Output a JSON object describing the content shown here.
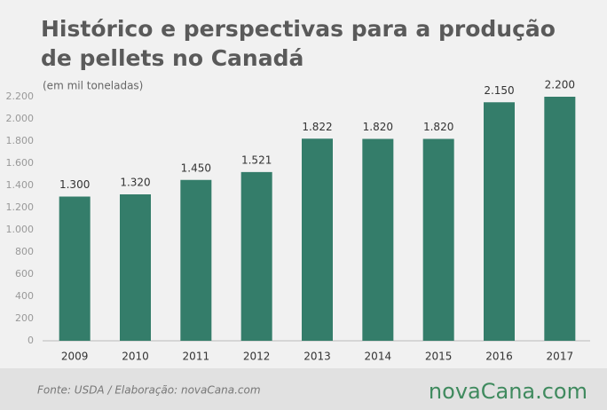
{
  "chart_data": {
    "type": "bar",
    "title": [
      "Histórico e perspectivas para a produção",
      "de pellets no Canadá"
    ],
    "subtitle": "(em mil toneladas)",
    "categories": [
      "2009",
      "2010",
      "2011",
      "2012",
      "2013",
      "2014",
      "2015",
      "2016",
      "2017"
    ],
    "values": [
      1300,
      1320,
      1450,
      1521,
      1822,
      1820,
      1820,
      2150,
      2200
    ],
    "value_labels": [
      "1.300",
      "1.320",
      "1.450",
      "1.521",
      "1.822",
      "1.820",
      "1.820",
      "2.150",
      "2.200"
    ],
    "color": "#347d6a",
    "ylim": [
      0,
      2200
    ],
    "yticks": [
      0,
      200,
      400,
      600,
      800,
      {
        "value": 1000,
        "label": "1.000"
      },
      {
        "value": 1200,
        "label": "1.200"
      },
      {
        "value": 1400,
        "label": "1.400"
      },
      {
        "value": 1600,
        "label": "1.600"
      },
      {
        "value": 1800,
        "label": "1.800"
      },
      {
        "value": 2000,
        "label": "2.000"
      },
      {
        "value": 2200,
        "label": "2.200"
      }
    ],
    "grid": false,
    "source": "Fonte:  USDA / Elaboração:  novaCana.com",
    "logo": "novaCana.com"
  }
}
